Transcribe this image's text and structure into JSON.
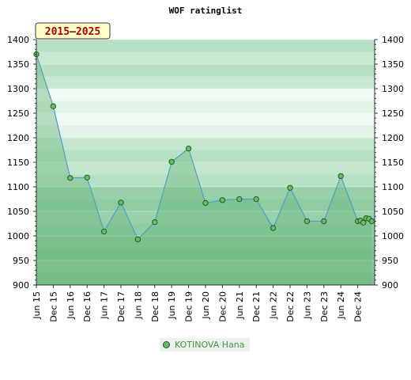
{
  "chart_data": {
    "type": "line",
    "title": "WOF ratinglist",
    "period_label": "2015–2025",
    "ylim": [
      900,
      1400
    ],
    "y_ticks": [
      900,
      950,
      1000,
      1050,
      1100,
      1150,
      1200,
      1250,
      1300,
      1350,
      1400
    ],
    "x_tick_labels": [
      "Jun 15",
      "Dec 15",
      "Jun 16",
      "Dec 16",
      "Jun 17",
      "Dec 17",
      "Jun 18",
      "Dec 18",
      "Jun 19",
      "Dec 19",
      "Jun 20",
      "Dec 20",
      "Jun 21",
      "Dec 21",
      "Jun 22",
      "Dec 22",
      "Jun 23",
      "Dec 23",
      "Jun 24",
      "Dec 24"
    ],
    "grid": true,
    "legend_position": "bottom",
    "series": [
      {
        "name": "KOTINOVA Hana",
        "color": "#66bb66",
        "x": [
          "2015-06",
          "2015-12",
          "2016-06",
          "2016-12",
          "2017-06",
          "2017-12",
          "2018-06",
          "2018-12",
          "2019-06",
          "2019-12",
          "2020-06",
          "2020-12",
          "2021-06",
          "2021-12",
          "2022-06",
          "2022-12",
          "2023-06",
          "2023-12",
          "2024-06",
          "2024-12",
          "2025-01",
          "2025-02",
          "2025-03",
          "2025-04",
          "2025-05"
        ],
        "values": [
          1370,
          1264,
          1118,
          1119,
          1009,
          1068,
          993,
          1028,
          1151,
          1178,
          1067,
          1073,
          1075,
          1075,
          1016,
          1098,
          1030,
          1030,
          1122,
          1030,
          1031,
          1027,
          1036,
          1035,
          1030
        ]
      }
    ]
  }
}
